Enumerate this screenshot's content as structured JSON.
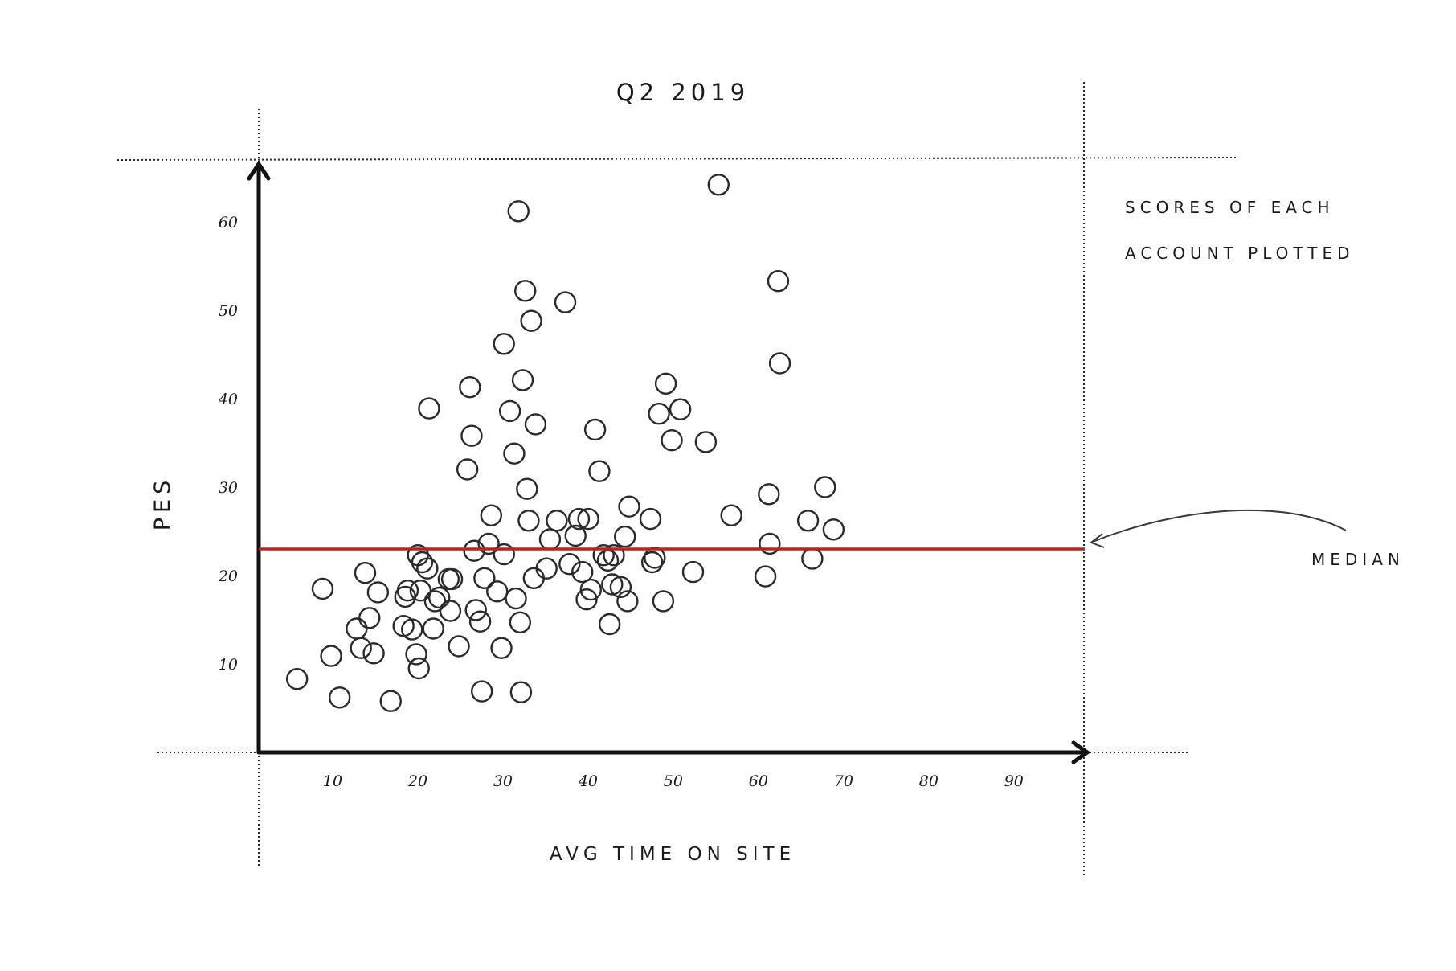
{
  "chart_data": {
    "type": "scatter",
    "title": "Q2 2019",
    "xlabel": "AVG TIME ON SITE",
    "ylabel": "PES",
    "xlim": [
      0,
      97
    ],
    "ylim": [
      0,
      66
    ],
    "x_ticks": [
      10,
      20,
      30,
      40,
      50,
      60,
      70,
      80,
      90
    ],
    "y_ticks": [
      10,
      20,
      30,
      40,
      50,
      60
    ],
    "grid": false,
    "annotation_note": [
      "SCORES OF EACH",
      "ACCOUNT PLOTTED"
    ],
    "median": {
      "label": "MEDIAN",
      "y": 23,
      "color": "#c0201d"
    },
    "series": [
      {
        "points": [
          [
            4.5,
            8.3
          ],
          [
            7.5,
            18.5
          ],
          [
            8.5,
            10.9
          ],
          [
            9.5,
            6.2
          ],
          [
            11.5,
            14
          ],
          [
            12,
            11.8
          ],
          [
            12.5,
            20.3
          ],
          [
            13,
            15.2
          ],
          [
            13.5,
            11.2
          ],
          [
            14,
            18.1
          ],
          [
            15.5,
            5.8
          ],
          [
            17,
            14.3
          ],
          [
            17.2,
            17.6
          ],
          [
            17.5,
            18.3
          ],
          [
            18,
            13.9
          ],
          [
            18.5,
            11.1
          ],
          [
            18.8,
            9.5
          ],
          [
            19,
            18.3
          ],
          [
            18.7,
            22.3
          ],
          [
            19.2,
            21.5
          ],
          [
            19.8,
            20.8
          ],
          [
            20,
            38.9
          ],
          [
            20.5,
            14
          ],
          [
            20.7,
            17.1
          ],
          [
            21.2,
            17.5
          ],
          [
            22.5,
            16
          ],
          [
            22.7,
            19.6
          ],
          [
            22.3,
            19.6
          ],
          [
            23.5,
            12
          ],
          [
            24.5,
            32
          ],
          [
            24.8,
            41.3
          ],
          [
            25,
            35.8
          ],
          [
            25.3,
            22.8
          ],
          [
            25.5,
            16.1
          ],
          [
            26,
            14.8
          ],
          [
            26.2,
            6.9
          ],
          [
            26.5,
            19.7
          ],
          [
            27,
            23.6
          ],
          [
            27.3,
            26.8
          ],
          [
            28,
            18.2
          ],
          [
            28.5,
            11.8
          ],
          [
            28.8,
            46.2
          ],
          [
            28.8,
            22.4
          ],
          [
            29.5,
            38.6
          ],
          [
            30,
            33.8
          ],
          [
            30.2,
            17.4
          ],
          [
            30.5,
            61.2
          ],
          [
            30.7,
            14.7
          ],
          [
            30.8,
            6.8
          ],
          [
            31,
            42.1
          ],
          [
            31.3,
            52.2
          ],
          [
            31.5,
            29.8
          ],
          [
            31.7,
            26.2
          ],
          [
            32,
            48.8
          ],
          [
            32.3,
            19.7
          ],
          [
            32.5,
            37.1
          ],
          [
            33.8,
            20.8
          ],
          [
            34.2,
            24.1
          ],
          [
            35,
            26.2
          ],
          [
            36,
            50.9
          ],
          [
            36.5,
            21.3
          ],
          [
            37.2,
            24.5
          ],
          [
            37.6,
            26.4
          ],
          [
            38,
            20.4
          ],
          [
            38.7,
            26.4
          ],
          [
            38.5,
            17.3
          ],
          [
            39,
            18.4
          ],
          [
            39.5,
            36.5
          ],
          [
            40,
            31.8
          ],
          [
            40.5,
            22.3
          ],
          [
            41,
            21.7
          ],
          [
            41.2,
            14.5
          ],
          [
            41.5,
            19
          ],
          [
            41.7,
            22.3
          ],
          [
            42.5,
            18.7
          ],
          [
            43,
            24.4
          ],
          [
            43.3,
            17.1
          ],
          [
            43.5,
            27.8
          ],
          [
            46,
            26.4
          ],
          [
            46.2,
            21.5
          ],
          [
            46.5,
            22
          ],
          [
            47,
            38.3
          ],
          [
            47.5,
            17.1
          ],
          [
            47.8,
            41.7
          ],
          [
            48.5,
            35.3
          ],
          [
            49.5,
            38.8
          ],
          [
            51,
            20.4
          ],
          [
            52.5,
            35.1
          ],
          [
            54,
            64.2
          ],
          [
            55.5,
            26.8
          ],
          [
            59.5,
            19.9
          ],
          [
            59.9,
            29.2
          ],
          [
            60,
            23.6
          ],
          [
            61,
            53.3
          ],
          [
            61.2,
            44
          ],
          [
            64.5,
            26.2
          ],
          [
            65,
            21.9
          ],
          [
            66.5,
            30
          ],
          [
            67.5,
            25.2
          ]
        ]
      }
    ]
  }
}
